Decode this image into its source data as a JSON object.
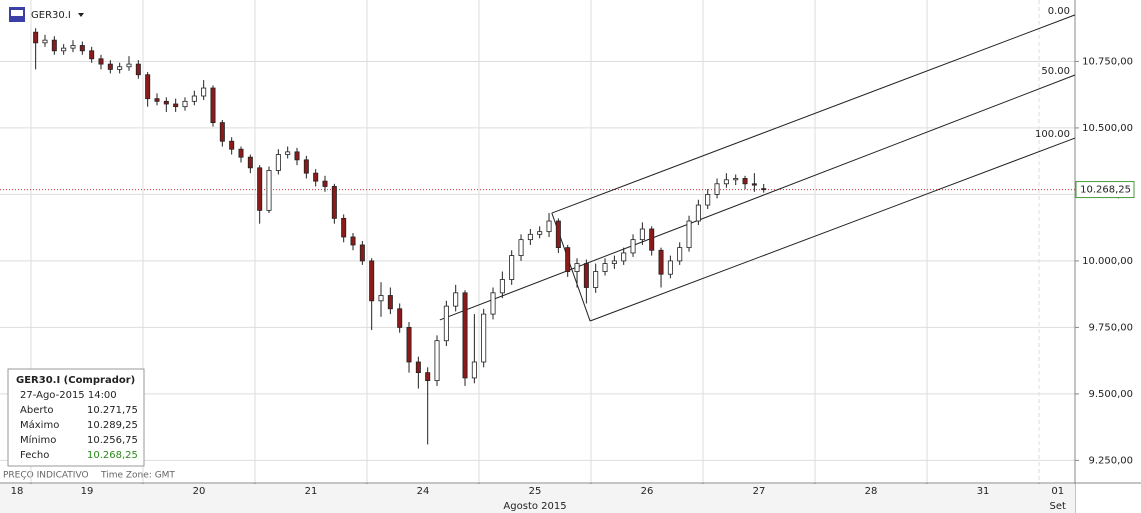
{
  "chart_data": {
    "type": "candlestick",
    "symbol": "GER30.I",
    "x": [
      1,
      3,
      5,
      7,
      9,
      11,
      13,
      15,
      17,
      19,
      21,
      23,
      25,
      27,
      29,
      31,
      33,
      35,
      37,
      39,
      41,
      43,
      45,
      47,
      49,
      51,
      53,
      55,
      57,
      59,
      61,
      63,
      65,
      67,
      69,
      71,
      73,
      75,
      77,
      79,
      81,
      83,
      85,
      87,
      89,
      91,
      93,
      95,
      97,
      99,
      101,
      103,
      105,
      107,
      109,
      111,
      113,
      115,
      117,
      119,
      121,
      123,
      125,
      127,
      129,
      131,
      133,
      135,
      137,
      139,
      141,
      143,
      145,
      147,
      149,
      151,
      153,
      155,
      157
    ],
    "open": [
      10860,
      10820,
      10830,
      10790,
      10800,
      10810,
      10790,
      10760,
      10740,
      10720,
      10730,
      10740,
      10700,
      10610,
      10600,
      10590,
      10580,
      10600,
      10620,
      10650,
      10520,
      10450,
      10420,
      10390,
      10350,
      10190,
      10340,
      10400,
      10410,
      10380,
      10330,
      10300,
      10280,
      10160,
      10090,
      10060,
      10000,
      9850,
      9870,
      9820,
      9750,
      9620,
      9580,
      9550,
      9700,
      9830,
      9880,
      9560,
      9620,
      9800,
      9880,
      9930,
      10020,
      10080,
      10100,
      10110,
      10150,
      10050,
      9960,
      9990,
      9900,
      9960,
      9990,
      10000,
      10030,
      10080,
      10120,
      10040,
      9950,
      10000,
      10050,
      10150,
      10210,
      10250,
      10290,
      10305,
      10310,
      10290,
      10271.75
    ],
    "high": [
      10875,
      10850,
      10845,
      10815,
      10830,
      10825,
      10805,
      10775,
      10755,
      10745,
      10770,
      10755,
      10710,
      10630,
      10615,
      10610,
      10615,
      10640,
      10680,
      10660,
      10530,
      10465,
      10430,
      10400,
      10360,
      10355,
      10420,
      10430,
      10425,
      10395,
      10345,
      10320,
      10290,
      10175,
      10105,
      10075,
      10010,
      9920,
      9900,
      9840,
      9770,
      9640,
      9600,
      9720,
      9850,
      9910,
      9890,
      9800,
      9820,
      9900,
      9960,
      10040,
      10100,
      10120,
      10130,
      10180,
      10160,
      10060,
      10010,
      10005,
      9990,
      10010,
      10020,
      10050,
      10100,
      10145,
      10130,
      10050,
      10020,
      10070,
      10170,
      10230,
      10270,
      10310,
      10330,
      10325,
      10320,
      10330,
      10289.25
    ],
    "low": [
      10720,
      10805,
      10775,
      10775,
      10785,
      10775,
      10745,
      10720,
      10705,
      10705,
      10715,
      10685,
      10580,
      10585,
      10560,
      10560,
      10565,
      10585,
      10605,
      10505,
      10430,
      10400,
      10370,
      10330,
      10140,
      10180,
      10325,
      10385,
      10360,
      10310,
      10280,
      10260,
      10140,
      10070,
      10040,
      9985,
      9740,
      9790,
      9800,
      9730,
      9580,
      9520,
      9310,
      9530,
      9680,
      9810,
      9530,
      9540,
      9600,
      9780,
      9860,
      9910,
      10000,
      10060,
      10085,
      10090,
      10030,
      9940,
      9900,
      9840,
      9880,
      9945,
      9970,
      9985,
      10015,
      10060,
      10020,
      9900,
      9935,
      9985,
      10035,
      10135,
      10195,
      10235,
      10275,
      10285,
      10270,
      10260,
      10256.75
    ],
    "close": [
      10820,
      10830,
      10790,
      10800,
      10810,
      10790,
      10760,
      10740,
      10720,
      10730,
      10740,
      10700,
      10610,
      10600,
      10590,
      10580,
      10600,
      10620,
      10650,
      10520,
      10450,
      10420,
      10390,
      10350,
      10190,
      10340,
      10400,
      10410,
      10380,
      10330,
      10300,
      10280,
      10160,
      10090,
      10060,
      10000,
      9850,
      9870,
      9820,
      9750,
      9620,
      9580,
      9550,
      9700,
      9830,
      9880,
      9560,
      9620,
      9800,
      9880,
      9930,
      10020,
      10080,
      10100,
      10110,
      10150,
      10050,
      9960,
      9990,
      9900,
      9960,
      9990,
      10000,
      10030,
      10080,
      10120,
      10040,
      9950,
      10000,
      10050,
      10150,
      10210,
      10250,
      10290,
      10305,
      10310,
      10290,
      10285,
      10268.25
    ],
    "up_color": "#ffffff",
    "down_color": "#8b1a1a",
    "xlim": [
      -6.64,
      223.7
    ],
    "ylim": [
      9165,
      10981
    ],
    "yticks": [
      {
        "value": 9250,
        "label": "9.250,00"
      },
      {
        "value": 9500,
        "label": "9.500,00"
      },
      {
        "value": 9750,
        "label": "9.750,00"
      },
      {
        "value": 10000,
        "label": "10.000,00"
      },
      {
        "value": 10250,
        "label": "10.250,00"
      },
      {
        "value": 10500,
        "label": "10.500,00"
      },
      {
        "value": 10750,
        "label": "10.750,00"
      }
    ],
    "xticks": [
      {
        "value": -3,
        "label": "18"
      },
      {
        "value": 12,
        "label": "19"
      },
      {
        "value": 36,
        "label": "20"
      },
      {
        "value": 60,
        "label": "21"
      },
      {
        "value": 84,
        "label": "24"
      },
      {
        "value": 108,
        "label": "25"
      },
      {
        "value": 132,
        "label": "26"
      },
      {
        "value": 156,
        "label": "27"
      },
      {
        "value": 180,
        "label": "28"
      },
      {
        "value": 204,
        "label": "31"
      },
      {
        "value": 220,
        "label": "01"
      }
    ],
    "day_separators": [
      0,
      24,
      48,
      72,
      96,
      120,
      144,
      168,
      192,
      216
    ],
    "months": [
      {
        "value": 108,
        "label": "Agosto 2015"
      },
      {
        "value": 220,
        "label": "Set"
      }
    ],
    "last_price": {
      "value": 10268.25,
      "label": "10.268,25"
    },
    "pitchfork": {
      "lines": [
        [
          [
            111.6,
            10180
          ],
          [
            223.7,
            10925
          ]
        ],
        [
          [
            87.6,
            9778
          ],
          [
            223.7,
            10699
          ]
        ],
        [
          [
            119.8,
            9774
          ],
          [
            223.7,
            10462
          ]
        ],
        [
          [
            111.6,
            10180
          ],
          [
            119.8,
            9774
          ]
        ]
      ],
      "labels": [
        {
          "value": 10925,
          "label": "0.00"
        },
        {
          "value": 10699,
          "label": "50.00"
        },
        {
          "value": 10462,
          "label": "100.00"
        }
      ]
    }
  },
  "info_panel": {
    "title": "GER30.I (Comprador)",
    "date": "27-Ago-2015 14:00",
    "rows": [
      [
        "Aberto",
        "10.271,75"
      ],
      [
        "Máximo",
        "10.289,25"
      ],
      [
        "Mínimo",
        "10.256,75"
      ],
      [
        "Fecho",
        "10.268,25"
      ]
    ]
  },
  "footer": [
    "PREÇO INDICATIVO",
    "Time Zone: GMT"
  ]
}
